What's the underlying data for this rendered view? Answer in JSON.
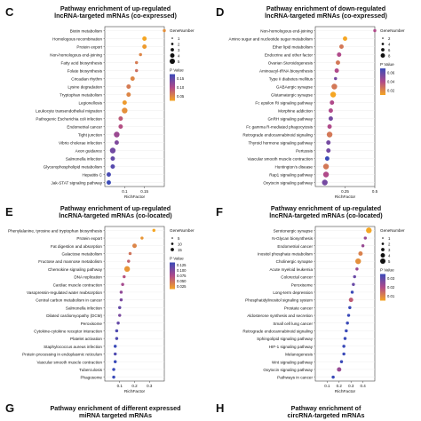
{
  "panels": {
    "C": {
      "label": "C",
      "title_line1": "Pathway enrichment of up-regulated",
      "title_line2": "lncRNA-targeted mRNAs (co-expressed)"
    },
    "D": {
      "label": "D",
      "title_line1": "Pathway enrichment of down-regulated",
      "title_line2": "lncRNA-targeted mRNAs (co-expressed)"
    },
    "E": {
      "label": "E",
      "title_line1": "Pathway enrichment of up-regulated",
      "title_line2": "lncRNA-targeted mRNAs (co-located)"
    },
    "F": {
      "label": "F",
      "title_line1": "Pathway enrichment of up-regulated",
      "title_line2": "lncRNA-targeted mRNAs (co-located)"
    },
    "G": {
      "label": "G",
      "title_line1": "Pathway enrichment of different expressed",
      "title_line2": "miRNA targeted mRNAs"
    },
    "H": {
      "label": "H",
      "title_line1": "Pathway enrichment of",
      "title_line2": "circRNA-targeted mRNAs"
    }
  },
  "chart_data": [
    {
      "type": "scatter",
      "id": "C",
      "xlabel": "RichFactor",
      "xlim": [
        0.05,
        0.2
      ],
      "xticks": [
        0.1,
        0.15
      ],
      "legend_size_title": "GeneNumber",
      "size_levels": [
        "1",
        "2",
        "3",
        "4",
        "5"
      ],
      "legend_color_title": "P Value",
      "color_ticks": [
        "0.15",
        "0.10",
        "0.05"
      ],
      "colors": {
        "low": "#f5a623",
        "mid": "#b04a8a",
        "high": "#3a4ab8"
      },
      "categories": [
        "Biotin metabolism",
        "Homologous recombination",
        "Protein export",
        "Non-homologous end-joining",
        "Fatty acid biosynthesis",
        "Folate biosynthesis",
        "Circadian rhythm",
        "Lysine degradation",
        "Tryptophan metabolism",
        "Legionellosis",
        "Leukocyte transendothelial migration",
        "Pathogenic Escherichia coli infection",
        "Endometrial cancer",
        "Tight junction",
        "Vibrio cholerae infection",
        "Axon guidance",
        "Salmonella infection",
        "Glycerophospholipid metabolism",
        "Hepatitis C",
        "Jak-STAT signaling pathway"
      ],
      "x": [
        0.2,
        0.15,
        0.15,
        0.14,
        0.13,
        0.13,
        0.12,
        0.11,
        0.11,
        0.1,
        0.1,
        0.09,
        0.09,
        0.08,
        0.08,
        0.07,
        0.07,
        0.07,
        0.06,
        0.06
      ],
      "size": [
        1,
        2,
        2,
        1,
        1,
        1,
        2,
        2,
        2,
        2,
        3,
        2,
        2,
        3,
        2,
        3,
        2,
        2,
        2,
        2
      ],
      "pvalue": [
        0.04,
        0.02,
        0.03,
        0.05,
        0.06,
        0.07,
        0.05,
        0.06,
        0.05,
        0.03,
        0.04,
        0.09,
        0.1,
        0.12,
        0.14,
        0.15,
        0.16,
        0.17,
        0.18,
        0.19
      ]
    },
    {
      "type": "scatter",
      "id": "D",
      "xlabel": "RichFactor",
      "xlim": [
        0,
        0.5
      ],
      "xticks": [
        0.25,
        0.5
      ],
      "legend_size_title": "GeneNumber",
      "size_levels": [
        "2",
        "4",
        "6",
        "8"
      ],
      "legend_color_title": "P Value",
      "color_ticks": [
        "0.06",
        "0.04",
        "0.02"
      ],
      "colors": {
        "low": "#f5a623",
        "mid": "#b04a8a",
        "high": "#3a4ab8"
      },
      "categories": [
        "Non-homologous end-joining",
        "Amino sugar and nucleotide sugar metabolism",
        "Ether lipid metabolism",
        "Endocrine and other factor",
        "Ovarian Steroidogenesis",
        "Aminoacyl-tRNA biosynthesis",
        "Type II diabetes mellitus",
        "GABAergic synapse",
        "Glutamatergic synapse",
        "Fc epsilon RI signaling pathway",
        "Morphine addiction",
        "GnRH signaling pathway",
        "Fc gamma R-mediated phagocytosis",
        "Retrograde endocannabinoid signaling",
        "Thyroid hormone signaling pathway",
        "Pertussis",
        "Vascular smooth muscle contraction",
        "Huntington's disease",
        "Rap1 signaling pathway",
        "Oxytocin signaling pathway"
      ],
      "x": [
        0.5,
        0.25,
        0.22,
        0.2,
        0.19,
        0.18,
        0.17,
        0.16,
        0.15,
        0.14,
        0.13,
        0.13,
        0.12,
        0.12,
        0.11,
        0.11,
        0.1,
        0.09,
        0.09,
        0.08
      ],
      "size": [
        1,
        2,
        2,
        2,
        2,
        2,
        1,
        3,
        3,
        2,
        2,
        2,
        2,
        3,
        2,
        2,
        2,
        3,
        3,
        3
      ],
      "pvalue": [
        0.03,
        0.01,
        0.02,
        0.03,
        0.02,
        0.03,
        0.04,
        0.02,
        0.01,
        0.03,
        0.03,
        0.04,
        0.03,
        0.02,
        0.04,
        0.04,
        0.05,
        0.02,
        0.03,
        0.04
      ]
    },
    {
      "type": "scatter",
      "id": "E",
      "xlabel": "RichFactor",
      "xlim": [
        0,
        0.4
      ],
      "xticks": [
        0.1,
        0.2,
        0.3
      ],
      "legend_size_title": "GeneNumber",
      "size_levels": [
        "5",
        "10",
        "15"
      ],
      "legend_color_title": "P Value",
      "color_ticks": [
        "0.125",
        "0.100",
        "0.075",
        "0.050",
        "0.025"
      ],
      "colors": {
        "low": "#f5a623",
        "mid": "#b04a8a",
        "high": "#3a4ab8"
      },
      "categories": [
        "Phenylalanine, tyrosine and tryptophan biosynthesis",
        "Protein export",
        "Fat digestion and absorption",
        "Galactose metabolism",
        "Fructose and mannose metabolism",
        "Chemokine signaling pathway",
        "DNA replication",
        "Cardiac muscle contraction",
        "Vasopressin-regulated water reabsorption",
        "Central carbon metabolism in cancer",
        "Salmonella infection",
        "Dilated cardiomyopathy (DCM)",
        "Peroxisome",
        "Cytokine-cytokine receptor interaction",
        "Platelet activation",
        "Staphylococcus aureus infection",
        "Protein processing in endoplasmic reticulum",
        "Vascular smooth muscle contraction",
        "Tuberculosis",
        "Phagosome"
      ],
      "x": [
        0.33,
        0.25,
        0.2,
        0.17,
        0.16,
        0.15,
        0.13,
        0.12,
        0.11,
        0.11,
        0.1,
        0.1,
        0.09,
        0.08,
        0.08,
        0.07,
        0.07,
        0.07,
        0.06,
        0.06
      ],
      "size": [
        1,
        1,
        2,
        1,
        1,
        3,
        1,
        1,
        1,
        1,
        1,
        1,
        1,
        1,
        1,
        1,
        1,
        1,
        1,
        1
      ],
      "pvalue": [
        0.02,
        0.03,
        0.04,
        0.05,
        0.06,
        0.03,
        0.07,
        0.08,
        0.09,
        0.1,
        0.11,
        0.1,
        0.11,
        0.12,
        0.12,
        0.13,
        0.12,
        0.13,
        0.13,
        0.13
      ]
    },
    {
      "type": "scatter",
      "id": "F",
      "xlabel": "RichFactor",
      "xlim": [
        0,
        0.5
      ],
      "xticks": [
        0.1,
        0.2,
        0.3,
        0.4
      ],
      "legend_size_title": "GeneNumber",
      "size_levels": [
        "1",
        "2",
        "3",
        "4",
        "5"
      ],
      "legend_color_title": "P Value",
      "color_ticks": [
        "0.03",
        "0.02",
        "0.01"
      ],
      "colors": {
        "low": "#f5a623",
        "mid": "#b04a8a",
        "high": "#3a4ab8"
      },
      "categories": [
        "Serotonergic synapse",
        "N-Glycan biosynthesis",
        "Endometrial cancer",
        "Inositol phosphate metabolism",
        "Cholinergic synapse",
        "Acute myeloid leukemia",
        "Colorectal cancer",
        "Peroxisome",
        "Long-term depression",
        "Phosphatidylinositol signaling system",
        "Prostate cancer",
        "Aldosterone synthesis and secretion",
        "Small cell lung cancer",
        "Retrograde endocannabinoid signaling",
        "Sphingolipid signaling pathway",
        "HIF-1 signaling pathway",
        "Melanogenesis",
        "Wnt signaling pathway",
        "Oxytocin signaling pathway",
        "Pathways in cancer"
      ],
      "x": [
        0.45,
        0.42,
        0.4,
        0.38,
        0.36,
        0.35,
        0.33,
        0.32,
        0.31,
        0.3,
        0.29,
        0.28,
        0.27,
        0.26,
        0.25,
        0.24,
        0.24,
        0.22,
        0.2,
        0.15
      ],
      "size": [
        3,
        1,
        1,
        2,
        3,
        1,
        1,
        1,
        1,
        2,
        1,
        1,
        1,
        1,
        1,
        1,
        1,
        1,
        2,
        1
      ],
      "pvalue": [
        0.005,
        0.02,
        0.02,
        0.01,
        0.008,
        0.02,
        0.025,
        0.025,
        0.03,
        0.015,
        0.03,
        0.03,
        0.03,
        0.03,
        0.03,
        0.03,
        0.03,
        0.03,
        0.02,
        0.03
      ]
    }
  ]
}
